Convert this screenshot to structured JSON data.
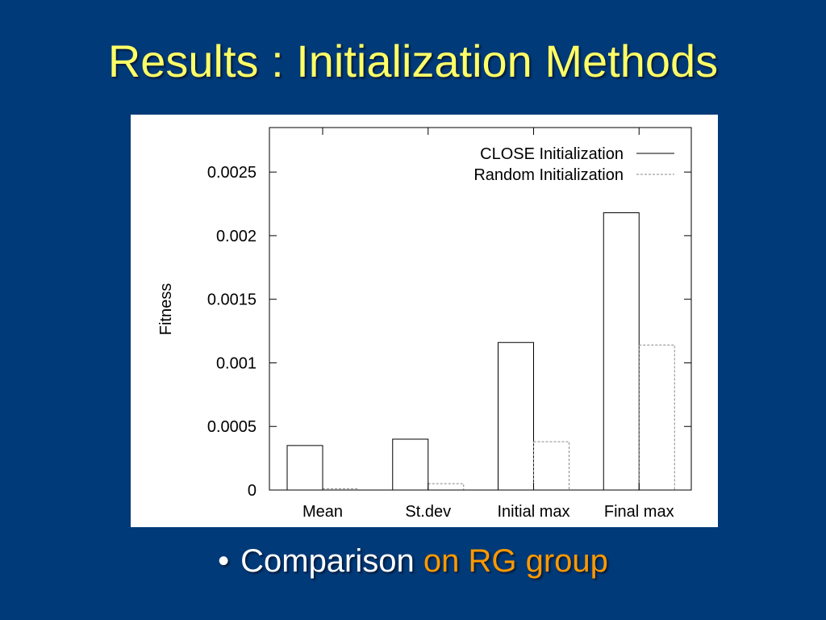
{
  "slide": {
    "title": "Results : Initialization Methods",
    "bullet_symbol": "•",
    "bullet_text": "Comparison ",
    "bullet_highlight": "on RG group",
    "background_color": "#003a78",
    "title_color": "#ffff66",
    "highlight_color": "#ff9900"
  },
  "chart_data": {
    "type": "bar",
    "title": "",
    "xlabel": "",
    "ylabel": "Fitness",
    "categories": [
      "Mean",
      "St.dev",
      "Initial max",
      "Final max"
    ],
    "series": [
      {
        "name": "CLOSE Initialization",
        "values": [
          0.00035,
          0.0004,
          0.00116,
          0.00218
        ],
        "line_style": "solid"
      },
      {
        "name": "Random Initialization",
        "values": [
          1e-05,
          5e-05,
          0.00038,
          0.00114
        ],
        "line_style": "dashed"
      }
    ],
    "ylim": [
      0,
      0.00285
    ],
    "yticks": [
      0,
      0.0005,
      0.001,
      0.0015,
      0.002,
      0.0025
    ],
    "ytick_labels": [
      "0",
      "0.0005",
      "0.001",
      "0.0015",
      "0.002",
      "0.0025"
    ],
    "legend_position": "top-right",
    "grid": false
  }
}
